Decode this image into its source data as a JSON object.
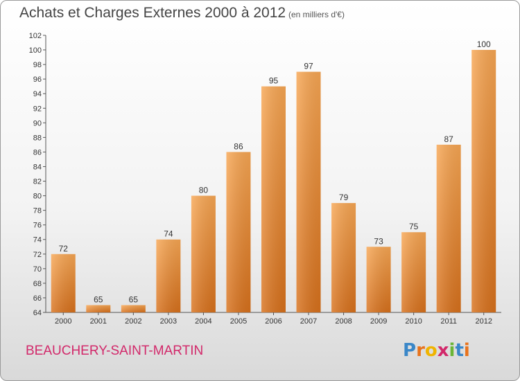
{
  "header": {
    "title": "Achats et Charges Externes 2000 à 2012",
    "subtitle": "(en milliers d'€)"
  },
  "footer": {
    "commune": "BEAUCHERY-SAINT-MARTIN",
    "logo_text": "Proxiti",
    "logo_letters": [
      {
        "char": "P",
        "color": "#3a87c8"
      },
      {
        "char": "r",
        "color": "#e8731c"
      },
      {
        "char": "o",
        "color": "#f0b400"
      },
      {
        "char": "x",
        "color": "#d2286a"
      },
      {
        "char": "i",
        "color": "#6ab536"
      },
      {
        "char": "t",
        "color": "#3a87c8"
      },
      {
        "char": "i",
        "color": "#e8731c"
      }
    ]
  },
  "colors": {
    "bar_light": "#f8a754",
    "bar_dark": "#d8711c",
    "accent": "#d2286a"
  },
  "chart_data": {
    "type": "bar",
    "categories": [
      "2000",
      "2001",
      "2002",
      "2003",
      "2004",
      "2005",
      "2006",
      "2007",
      "2008",
      "2009",
      "2010",
      "2011",
      "2012"
    ],
    "values": [
      72,
      65,
      65,
      74,
      80,
      86,
      95,
      97,
      79,
      73,
      75,
      87,
      100
    ],
    "ylim": [
      64,
      102
    ],
    "yticks": [
      64,
      66,
      68,
      70,
      72,
      74,
      76,
      78,
      80,
      82,
      84,
      86,
      88,
      90,
      92,
      94,
      96,
      98,
      100,
      102
    ],
    "grid": false,
    "data_labels": true
  }
}
